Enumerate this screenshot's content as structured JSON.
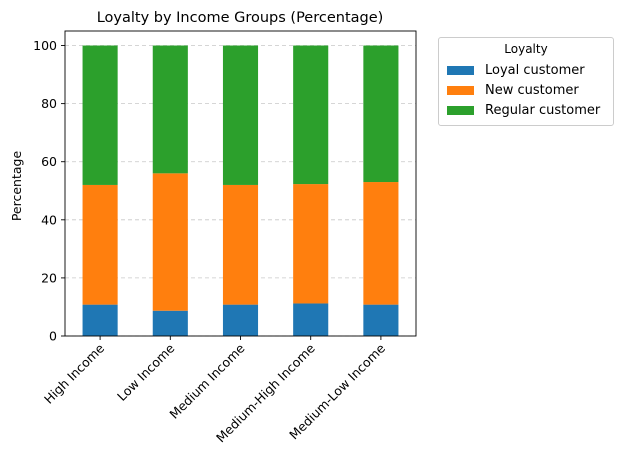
{
  "chart_data": {
    "type": "bar",
    "stacked": true,
    "title": "Loyalty by Income Groups (Percentage)",
    "xlabel": "",
    "ylabel": "Percentage",
    "ylim": [
      0,
      105
    ],
    "yticks": [
      0,
      20,
      40,
      60,
      80,
      100
    ],
    "grid": "y-dashed",
    "categories": [
      "High Income",
      "Low Income",
      "Medium Income",
      "Medium-High Income",
      "Medium-Low Income"
    ],
    "legend": {
      "title": "Loyalty",
      "placement": "outside-top-right"
    },
    "series": [
      {
        "name": "Loyal customer",
        "color": "#1f77b4",
        "values": [
          10.8,
          8.7,
          10.8,
          11.2,
          10.8
        ]
      },
      {
        "name": "New customer",
        "color": "#ff7f0e",
        "values": [
          41.2,
          47.3,
          41.2,
          41.1,
          42.2
        ]
      },
      {
        "name": "Regular customer",
        "color": "#2ca02c",
        "values": [
          48.0,
          44.0,
          48.0,
          47.7,
          47.0
        ]
      }
    ]
  }
}
